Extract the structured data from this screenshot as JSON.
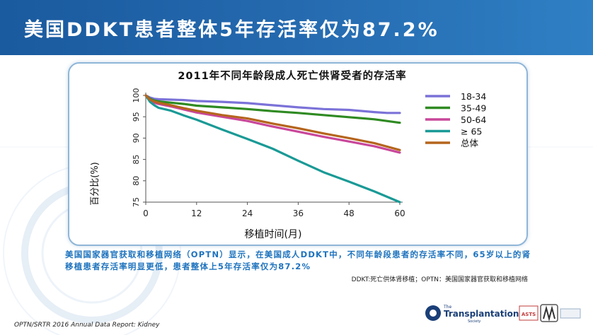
{
  "header": {
    "title": "美国DDKT患者整体5年存活率仅为87.2%"
  },
  "chart_data": {
    "type": "line",
    "title": "2011年不同年龄段成人死亡供肾受者的存活率",
    "xlabel": "移植时间(月)",
    "ylabel": "百分比(%)",
    "xlim": [
      0,
      60
    ],
    "ylim": [
      75,
      100
    ],
    "xticks": [
      0,
      12,
      24,
      36,
      48,
      60
    ],
    "yticks": [
      75,
      80,
      85,
      90,
      95,
      100
    ],
    "grid": false,
    "legend_position": "top-right",
    "series": [
      {
        "name": "18-34",
        "color": "#7b72d8",
        "x": [
          0,
          1,
          2,
          3,
          6,
          9,
          12,
          18,
          24,
          30,
          36,
          42,
          48,
          54,
          57,
          60
        ],
        "y": [
          100,
          99.5,
          99.2,
          99.1,
          99.0,
          98.9,
          98.7,
          98.5,
          98.2,
          97.7,
          97.2,
          96.8,
          96.6,
          96.1,
          95.9,
          95.9
        ]
      },
      {
        "name": "35-49",
        "color": "#2f8a22",
        "x": [
          0,
          1,
          2,
          3,
          6,
          9,
          12,
          18,
          24,
          30,
          36,
          42,
          48,
          54,
          60
        ],
        "y": [
          100,
          99.2,
          98.8,
          98.6,
          98.3,
          98.0,
          97.6,
          97.2,
          96.8,
          96.3,
          95.9,
          95.4,
          94.9,
          94.4,
          93.6
        ]
      },
      {
        "name": "50-64",
        "color": "#c9479a",
        "x": [
          0,
          1,
          2,
          3,
          6,
          9,
          12,
          18,
          24,
          30,
          36,
          42,
          48,
          54,
          60
        ],
        "y": [
          100,
          98.8,
          98.3,
          98.0,
          97.4,
          96.7,
          96.0,
          95.0,
          94.0,
          92.7,
          91.5,
          90.3,
          89.2,
          88.1,
          86.6
        ]
      },
      {
        "name": "≥ 65",
        "color": "#1a9a96",
        "x": [
          0,
          1,
          2,
          3,
          6,
          9,
          12,
          18,
          24,
          30,
          36,
          42,
          48,
          54,
          60
        ],
        "y": [
          100,
          98.5,
          97.7,
          97.1,
          96.4,
          95.3,
          94.3,
          92.0,
          89.8,
          87.5,
          84.7,
          82.0,
          79.8,
          77.5,
          75.0
        ]
      },
      {
        "name": "总体",
        "color": "#b5651d",
        "x": [
          0,
          1,
          2,
          3,
          6,
          9,
          12,
          18,
          24,
          30,
          36,
          42,
          48,
          54,
          60
        ],
        "y": [
          100,
          99.0,
          98.6,
          98.3,
          97.7,
          97.0,
          96.4,
          95.4,
          94.6,
          93.4,
          92.3,
          91.1,
          90.0,
          88.8,
          87.2
        ]
      }
    ]
  },
  "caption": "美国国家器官获取和移植网络（OPTN）显示，在美国成人DDKT中，不同年龄段患者的存活率不同，65岁以上的肾移植患者存活率明显更低，患者整体上5年存活率仅为87.2%",
  "footnote": "DDKT:死亡供体肾移植；OPTN：美国国家器官获取和移植网络",
  "source": "OPTN/SRTR 2016 Annual Data Report: Kidney",
  "logos": {
    "left_small": "The",
    "left_big": "Transplantation",
    "left_tiny": "Society",
    "right_text": "ASTS"
  },
  "colors": {
    "header_bg": "#1f5fa8",
    "caption": "#1e73be",
    "card_border": "#8fb6d8"
  }
}
